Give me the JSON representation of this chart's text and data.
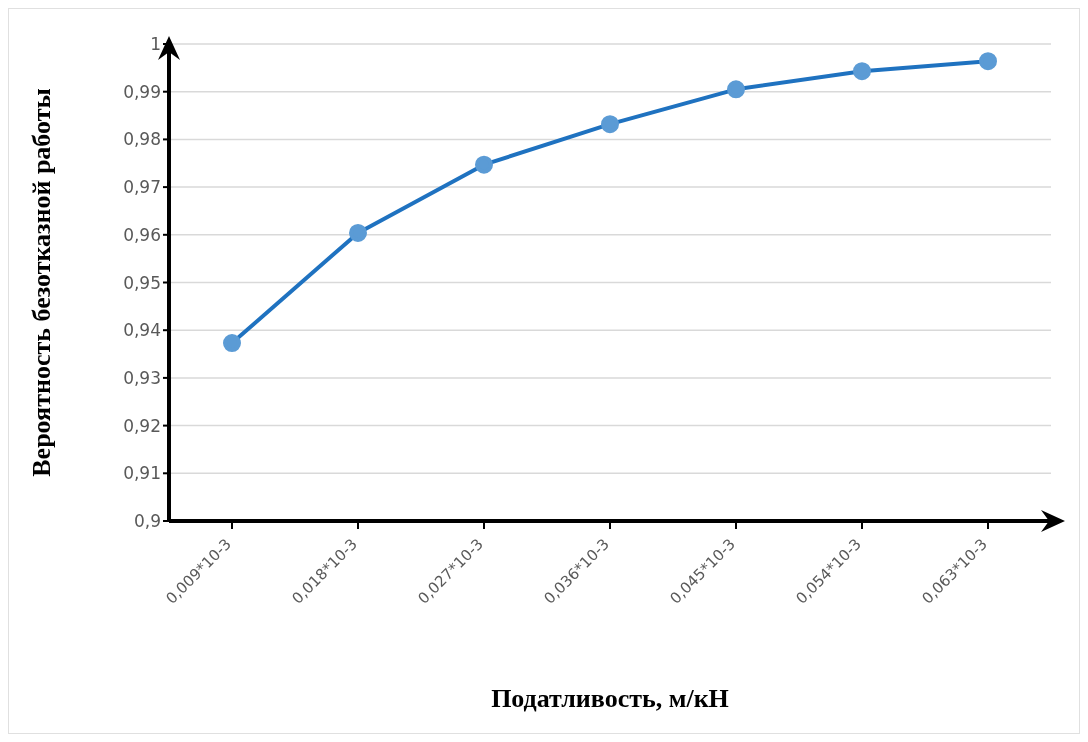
{
  "chart_data": {
    "type": "line",
    "xlabel": "Податливость, м/кН",
    "ylabel": "Вероятность безотказной работы",
    "categories": [
      "0,009*10-3",
      "0,018*10-3",
      "0,027*10-3",
      "0,036*10-3",
      "0,045*10-3",
      "0,054*10-3",
      "0,063*10-3"
    ],
    "series": [
      {
        "color": "#1f72c0",
        "values": [
          0.9373,
          0.9604,
          0.9747,
          0.9832,
          0.9905,
          0.9943,
          0.9964
        ]
      }
    ],
    "ylim": [
      0.9,
      1
    ],
    "yticks": [
      {
        "value": 0.9,
        "label": "0,9"
      },
      {
        "value": 0.91,
        "label": "0,91"
      },
      {
        "value": 0.92,
        "label": "0,92"
      },
      {
        "value": 0.93,
        "label": "0,93"
      },
      {
        "value": 0.94,
        "label": "0,94"
      },
      {
        "value": 0.95,
        "label": "0,95"
      },
      {
        "value": 0.96,
        "label": "0,96"
      },
      {
        "value": 0.97,
        "label": "0,97"
      },
      {
        "value": 0.98,
        "label": "0,98"
      },
      {
        "value": 0.99,
        "label": "0,99"
      },
      1
    ],
    "grid": "y",
    "marker": "circle",
    "line_style": "solid",
    "legend": false
  }
}
